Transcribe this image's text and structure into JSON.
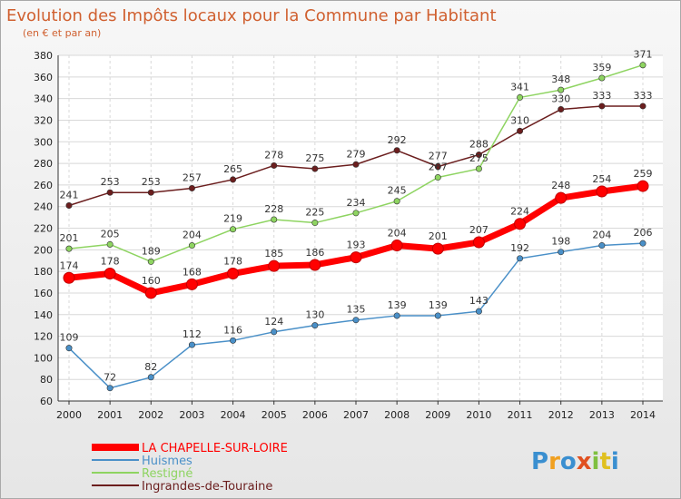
{
  "chart_data": {
    "type": "line",
    "title": "Evolution des Impôts locaux pour la Commune par Habitant",
    "subtitle": "(en € et par an)",
    "xlabel": "",
    "ylabel": "",
    "ylim": [
      60,
      380
    ],
    "yticks": [
      60,
      80,
      100,
      120,
      140,
      160,
      180,
      200,
      220,
      240,
      260,
      280,
      300,
      320,
      340,
      360,
      380
    ],
    "categories": [
      "2000",
      "2001",
      "2002",
      "2003",
      "2004",
      "2005",
      "2006",
      "2007",
      "2008",
      "2009",
      "2010",
      "2011",
      "2012",
      "2013",
      "2014"
    ],
    "grid": true,
    "legend_position": "bottom-left",
    "series": [
      {
        "name": "Ingrandes-de-Touraine",
        "color": "#6b1e1e",
        "values": [
          241,
          253,
          253,
          257,
          265,
          278,
          275,
          279,
          292,
          277,
          288,
          310,
          330,
          333,
          333
        ]
      },
      {
        "name": "Restigné",
        "color": "#8ed461",
        "values": [
          201,
          205,
          189,
          204,
          219,
          228,
          225,
          234,
          245,
          267,
          275,
          341,
          348,
          359,
          371
        ]
      },
      {
        "name": "Huismes",
        "color": "#4a90c8",
        "values": [
          109,
          72,
          82,
          112,
          116,
          124,
          130,
          135,
          139,
          139,
          143,
          192,
          198,
          204,
          206
        ]
      },
      {
        "name": "LA CHAPELLE-SUR-LOIRE",
        "color": "#ff0000",
        "values": [
          174,
          178,
          160,
          168,
          178,
          185,
          186,
          193,
          204,
          201,
          207,
          224,
          248,
          254,
          259
        ]
      }
    ]
  },
  "legend": {
    "items": [
      {
        "label": "LA CHAPELLE-SUR-LOIRE",
        "color": "#ff0000"
      },
      {
        "label": "Huismes",
        "color": "#4a90c8"
      },
      {
        "label": "Restigné",
        "color": "#8ed461"
      },
      {
        "label": "Ingrandes-de-Touraine",
        "color": "#6b1e1e"
      }
    ]
  },
  "logo": {
    "letters": [
      "P",
      "r",
      "o",
      "x",
      "i",
      "t",
      "i"
    ],
    "colors": [
      "#3a8fd0",
      "#f0a020",
      "#3a8fd0",
      "#e05020",
      "#80c040",
      "#e0c020",
      "#3a8fd0"
    ]
  }
}
